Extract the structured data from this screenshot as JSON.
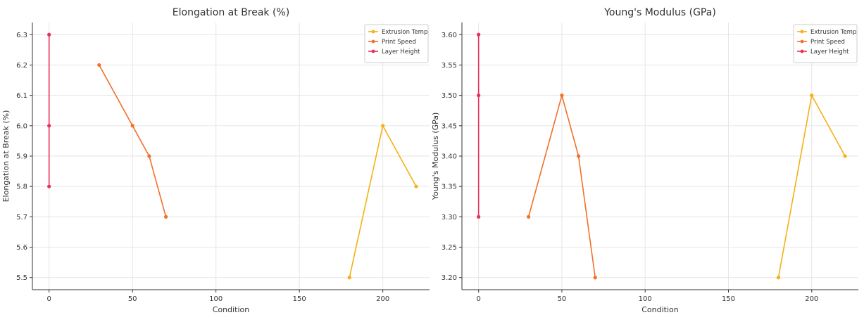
{
  "chart_data": [
    {
      "type": "line",
      "title": "Elongation at Break (%)",
      "xlabel": "Condition",
      "ylabel": "Elongation at Break (%)",
      "xlim": [
        -10,
        228
      ],
      "ylim": [
        5.46,
        6.34
      ],
      "xticks": [
        0,
        50,
        100,
        150,
        200
      ],
      "yticks": [
        5.5,
        5.6,
        5.7,
        5.8,
        5.9,
        6.0,
        6.1,
        6.2,
        6.3
      ],
      "ytick_decimals": 1,
      "grid": true,
      "legend_position": "top-right",
      "series": [
        {
          "name": "Extrusion Temp",
          "color": "#f5b014",
          "x": [
            180,
            200,
            220
          ],
          "y": [
            5.5,
            6.0,
            5.8
          ]
        },
        {
          "name": "Print Speed",
          "color": "#f2702a",
          "x": [
            30,
            50,
            60,
            70
          ],
          "y": [
            6.2,
            6.0,
            5.9,
            5.7
          ]
        },
        {
          "name": "Layer Height",
          "color": "#e8305a",
          "x": [
            0,
            0,
            0
          ],
          "y": [
            6.3,
            6.0,
            5.8
          ]
        }
      ]
    },
    {
      "type": "line",
      "title": "Young's Modulus (GPa)",
      "xlabel": "Condition",
      "ylabel": "Young's Modulus (GPa)",
      "xlim": [
        -10,
        228
      ],
      "ylim": [
        3.18,
        3.62
      ],
      "xticks": [
        0,
        50,
        100,
        150,
        200
      ],
      "yticks": [
        3.2,
        3.25,
        3.3,
        3.35,
        3.4,
        3.45,
        3.5,
        3.55,
        3.6
      ],
      "ytick_decimals": 2,
      "grid": true,
      "legend_position": "top-right",
      "series": [
        {
          "name": "Extrusion Temp",
          "color": "#f5b014",
          "x": [
            180,
            200,
            220
          ],
          "y": [
            3.2,
            3.5,
            3.4
          ]
        },
        {
          "name": "Print Speed",
          "color": "#f2702a",
          "x": [
            30,
            50,
            60,
            70
          ],
          "y": [
            3.3,
            3.5,
            3.4,
            3.2
          ]
        },
        {
          "name": "Layer Height",
          "color": "#e8305a",
          "x": [
            0,
            0,
            0
          ],
          "y": [
            3.6,
            3.5,
            3.3
          ]
        }
      ]
    }
  ]
}
